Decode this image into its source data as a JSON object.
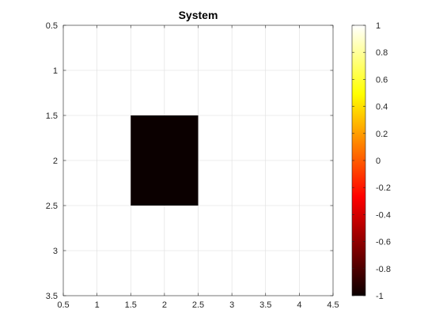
{
  "chart_data": {
    "type": "heatmap",
    "title": "System",
    "xlabel": "",
    "ylabel": "",
    "xlim": [
      0.5,
      4.5
    ],
    "ylim": [
      0.5,
      3.5
    ],
    "y_direction": "reverse",
    "grid": true,
    "x_ticks": [
      0.5,
      1,
      1.5,
      2,
      2.5,
      3,
      3.5,
      4,
      4.5
    ],
    "x_tick_labels": [
      "0.5",
      "1",
      "1.5",
      "2",
      "2.5",
      "3",
      "3.5",
      "4",
      "4.5"
    ],
    "y_ticks": [
      0.5,
      1,
      1.5,
      2,
      2.5,
      3,
      3.5
    ],
    "y_tick_labels": [
      "0.5",
      "1",
      "1.5",
      "2",
      "2.5",
      "3",
      "3.5"
    ],
    "image": {
      "x_range": [
        1.5,
        2.5
      ],
      "y_range": [
        1.5,
        2.5
      ],
      "value": -1,
      "color": "#0b0000"
    },
    "colorbar": {
      "colormap": "hot",
      "range": [
        -1,
        1
      ],
      "ticks": [
        -1,
        -0.8,
        -0.6,
        -0.4,
        -0.2,
        0,
        0.2,
        0.4,
        0.6,
        0.8,
        1
      ],
      "tick_labels": [
        "-1",
        "-0.8",
        "-0.6",
        "-0.4",
        "-0.2",
        "0",
        "0.2",
        "0.4",
        "0.6",
        "0.8",
        "1"
      ],
      "position": "right"
    }
  }
}
